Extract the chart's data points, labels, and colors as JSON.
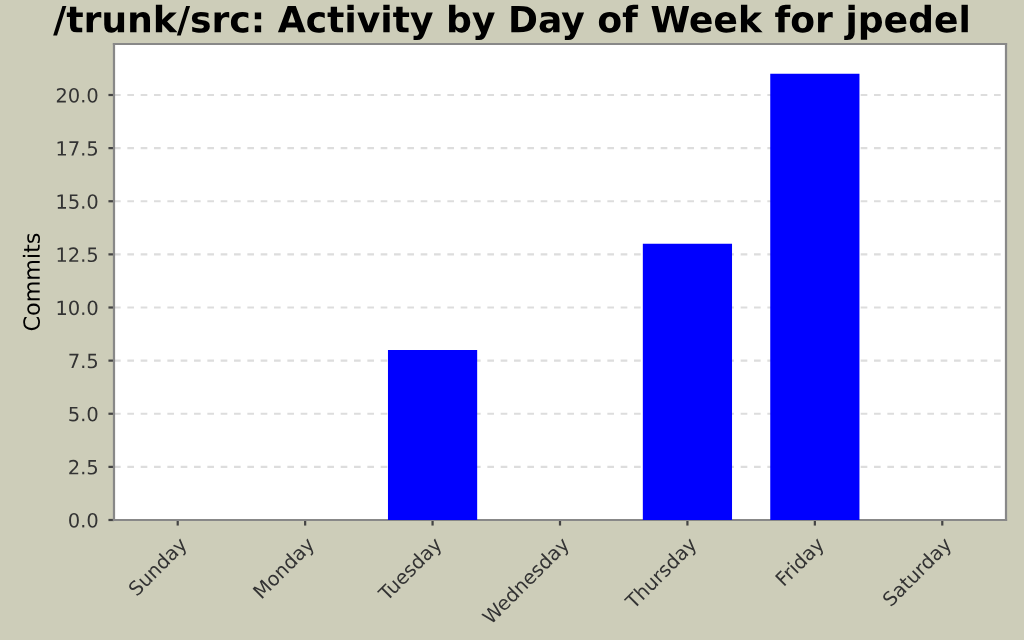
{
  "chart_data": {
    "type": "bar",
    "title": "/trunk/src: Activity by Day of Week for jpedel",
    "ylabel": "Commits",
    "categories": [
      "Sunday",
      "Monday",
      "Tuesday",
      "Wednesday",
      "Thursday",
      "Friday",
      "Saturday"
    ],
    "values": [
      0,
      0,
      8,
      0,
      13,
      21,
      0
    ],
    "color": "#0000ff",
    "ylim": [
      0,
      22.4
    ],
    "yticks": [
      {
        "value": 0,
        "label": "0.0"
      },
      {
        "value": 2.5,
        "label": "2.5"
      },
      {
        "value": 5,
        "label": "5.0"
      },
      {
        "value": 7.5,
        "label": "7.5"
      },
      {
        "value": 10,
        "label": "10.0"
      },
      {
        "value": 12.5,
        "label": "12.5"
      },
      {
        "value": 15,
        "label": "15.0"
      },
      {
        "value": 17.5,
        "label": "17.5"
      },
      {
        "value": 20,
        "label": "20.0"
      }
    ],
    "grid": "y"
  }
}
